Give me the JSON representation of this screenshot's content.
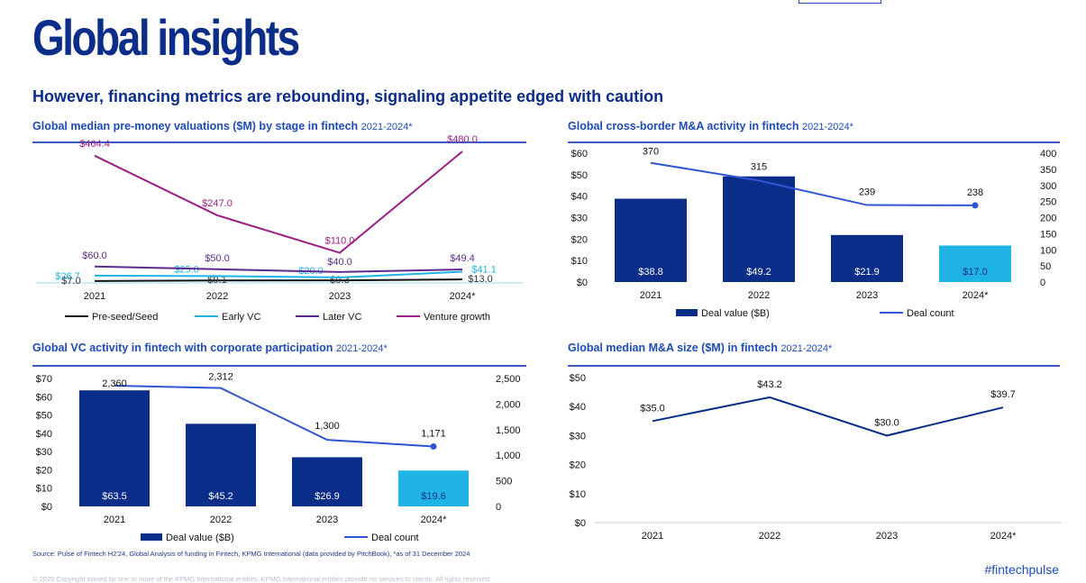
{
  "page": {
    "title": "Global insights",
    "subtitle": "However, financing metrics are rebounding, signaling appetite edged with caution",
    "source": "Source: Pulse of Fintech H2'24, Global Analysis of funding in Fintech, KPMG International (data provided by PitchBook), *as of 31 December 2024",
    "copyright": "© 2025 Copyright owned by one or more of the KPMG International entities. KPMG International entities provide no services to clients. All rights reserved.",
    "hashtag": "#fintechpulse"
  },
  "headers": {
    "c1": {
      "title": "Global median pre-money valuations ($M) by stage in fintech",
      "years": "2021-2024*"
    },
    "c2": {
      "title": "Global cross-border M&A activity in fintech",
      "years": "2021-2024*"
    },
    "c3": {
      "title": "Global VC activity in fintech with corporate participation",
      "years": "2021-2024*"
    },
    "c4": {
      "title": "Global median M&A size ($M) in fintech",
      "years": "2021-2024*"
    }
  },
  "chart_data": [
    {
      "id": "valuations",
      "type": "line",
      "title": "Global median pre-money valuations ($M) by stage in fintech 2021-2024*",
      "categories": [
        "2021",
        "2022",
        "2023",
        "2024*"
      ],
      "ylim": [
        0,
        500
      ],
      "series": [
        {
          "name": "Pre-seed/Seed",
          "color": "#111111",
          "values": [
            7.0,
            9.1,
            9.3,
            13.0
          ],
          "labels": [
            "$7.0",
            "$9.1",
            "$9.3",
            "$13.0"
          ]
        },
        {
          "name": "Early VC",
          "color": "#1fb3e6",
          "values": [
            26.7,
            25.0,
            20.0,
            41.1
          ],
          "labels": [
            "$26.7",
            "$25.0",
            "$20.0",
            "$41.1"
          ]
        },
        {
          "name": "Later VC",
          "color": "#5b2a91",
          "values": [
            60.0,
            50.0,
            40.0,
            49.4
          ],
          "labels": [
            "$60.0",
            "$50.0",
            "$40.0",
            "$49.4"
          ]
        },
        {
          "name": "Venture growth",
          "color": "#9c1c86",
          "values": [
            464.4,
            247.0,
            110.0,
            480.0
          ],
          "labels": [
            "$464.4",
            "$247.0",
            "$110.0",
            "$480.0"
          ]
        }
      ]
    },
    {
      "id": "crossborder_ma",
      "type": "bar",
      "title": "Global cross-border M&A activity in fintech 2021-2024*",
      "categories": [
        "2021",
        "2022",
        "2023",
        "2024*"
      ],
      "bars": {
        "name": "Deal value ($B)",
        "values": [
          38.8,
          49.2,
          21.9,
          17.0
        ],
        "labels": [
          "$38.8",
          "$49.2",
          "$21.9",
          "$17.0"
        ]
      },
      "line": {
        "name": "Deal count",
        "values": [
          370,
          315,
          239,
          238
        ],
        "labels": [
          "370",
          "315",
          "239",
          "238"
        ]
      },
      "y_left": {
        "ylim": [
          0,
          60
        ],
        "ticks": [
          "$0",
          "$10",
          "$20",
          "$30",
          "$40",
          "$50",
          "$60"
        ]
      },
      "y_right": {
        "ylim": [
          0,
          400
        ],
        "ticks": [
          "0",
          "50",
          "100",
          "150",
          "200",
          "250",
          "300",
          "350",
          "400"
        ]
      }
    },
    {
      "id": "vc_corporate",
      "type": "bar",
      "title": "Global VC activity in fintech with corporate participation 2021-2024*",
      "categories": [
        "2021",
        "2022",
        "2023",
        "2024*"
      ],
      "bars": {
        "name": "Deal value ($B)",
        "values": [
          63.5,
          45.2,
          26.9,
          19.6
        ],
        "labels": [
          "$63.5",
          "$45.2",
          "$26.9",
          "$19.6"
        ]
      },
      "line": {
        "name": "Deal count",
        "values": [
          2360,
          2312,
          1300,
          1171
        ],
        "labels": [
          "2,360",
          "2,312",
          "1,300",
          "1,171"
        ]
      },
      "y_left": {
        "ylim": [
          0,
          70
        ],
        "ticks": [
          "$0",
          "$10",
          "$20",
          "$30",
          "$40",
          "$50",
          "$60",
          "$70"
        ]
      },
      "y_right": {
        "ylim": [
          0,
          2500
        ],
        "ticks": [
          "0",
          "500",
          "1,000",
          "1,500",
          "2,000",
          "2,500"
        ]
      }
    },
    {
      "id": "ma_size",
      "type": "line",
      "title": "Global median M&A size ($M) in fintech 2021-2024*",
      "categories": [
        "2021",
        "2022",
        "2023",
        "2024*"
      ],
      "ylim": [
        0,
        50
      ],
      "ticks": [
        "$0",
        "$10",
        "$20",
        "$30",
        "$40",
        "$50"
      ],
      "values": [
        35.0,
        43.2,
        30.0,
        39.7
      ],
      "labels": [
        "$35.0",
        "$43.2",
        "$30.0",
        "$39.7"
      ]
    }
  ],
  "colors": {
    "navy": "#0b2d8a",
    "highlight": "#1fb3e6",
    "line": "#2f55d4",
    "text": "#1e3a8a",
    "rule": "#3a5bbf"
  }
}
